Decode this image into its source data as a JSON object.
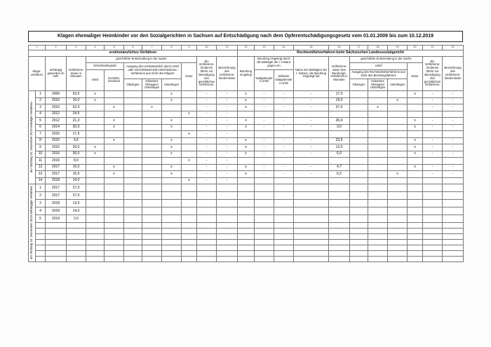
{
  "page": {
    "title": "Klagen ehemaliger Heimkinder vor den Sozialgerichten in Sachsen auf Entschädigung nach dem Opferentschädigungsgesetz vom 01.01.2009 bis zum 10.12.2019"
  },
  "table": {
    "column_numbers": [
      "1",
      "2",
      "3",
      "4",
      "5",
      "6",
      "7",
      "8",
      "9",
      "10",
      "11",
      "12",
      "13",
      "14",
      "15",
      "16",
      "17",
      "18",
      "19",
      "20",
      "21",
      "22"
    ],
    "bands": {
      "left": "erstinstanzliches Verfahren",
      "right": "Rechtsmittelverfahren beim Sächsischen Landessozialgericht"
    },
    "headers": {
      "klageverfahren": "Klage-verfahren",
      "jahr": "anhängig geworden im Jahr",
      "dauer1": "Verfahrens-dauer in Monaten",
      "gerichtl1": "gerichtliche Entscheidung in der Sache",
      "entscheidungsart": "Entscheidungsart",
      "urteil1": "Urteil",
      "gerichtsbescheid": "Gerichts-bescheid",
      "ausgang1": "Ausgang des erstinstanzlich durch Urteil oder Gerichtsbescheid entschiedenen Verfahrens aus Sicht des Klägers",
      "obsiegen1": "Obsiegen",
      "teilweise1": "teilweises Obsiegen/ Unterliegen",
      "unterliegen1": "Unterliegen",
      "keine1": "keine",
      "hindernis1": "Ein Verfahrens-hindernis führte zur Beendigung des gerichtlichen Verfahrens.",
      "bezeichnung1": "Bezeichnung des Verfahrens-hindernisses",
      "berufung": "Berufung eingelegt",
      "berufung_beklagte": "Berufung eingelegt durch die Beklagte der I. Instanz gegen ein",
      "stattgebend": "stattgebendes Urteil",
      "teilw_stattgebend": "teilweise stattgebendes Urteil",
      "name_beklagte": "Name der Beklagten der I. Instanz, die Berufung eingelegt hat",
      "dauer2": "Verfahrens-dauer des Berufungs-verfahrens in Monaten",
      "gerichtl2": "gerichtliche Entscheidung in der Sache",
      "urteil2": "Urteil",
      "ausgang2": "Ausgang des Rechtsmittelverfahrens aus Sicht des Berufungsführers",
      "obsiegen2": "Obsiegen",
      "teilweise2": "teilweises Obsiegen/ Unterliegen",
      "unterliegen2": "Unterliegen",
      "keine2": "keine",
      "hindernis2": "Ein Verfahrens-hindernis führte zur Beendigung des gerichtlichen Verfahrens.",
      "bezeichnung2": "Bezeichnung des Verfahrens-hindernisses"
    },
    "sections": [
      {
        "label": "am Stichtag 10. Dezember 2019 erledigte Verfahren",
        "filler_rows": 0,
        "rows": [
          [
            "1",
            "2009",
            "53,0",
            "x",
            "",
            "",
            "",
            "x",
            "",
            "-",
            "-",
            "x",
            "-",
            "-",
            "-",
            "17,0",
            "",
            "",
            "",
            "x",
            "-",
            "-"
          ],
          [
            "2",
            "2010",
            "16,0",
            "x",
            "",
            "",
            "",
            "x",
            "",
            "-",
            "-",
            "x",
            "-",
            "-",
            "-",
            "19,0",
            "",
            "",
            "x",
            "",
            "-",
            "-"
          ],
          [
            "3",
            "2010",
            "52,0",
            "",
            "x",
            "",
            "x",
            "",
            "",
            "-",
            "-",
            "x",
            "-",
            "-",
            "-",
            "37,0",
            "",
            "x",
            "",
            "",
            "-",
            "-"
          ],
          [
            "4",
            "2012",
            "24,5",
            "",
            "",
            "",
            "",
            "",
            "x",
            "-",
            "-",
            "",
            "",
            "",
            "",
            "",
            "",
            "",
            "",
            "",
            "",
            ""
          ],
          [
            "5",
            "2012",
            "21,3",
            "",
            "x",
            "",
            "",
            "x",
            "",
            "-",
            "-",
            "x",
            "-",
            "-",
            "-",
            "26,4",
            "",
            "",
            "",
            "x",
            "-",
            "-"
          ],
          [
            "6",
            "2014",
            "30,0",
            "",
            "x",
            "",
            "",
            "x",
            "",
            "-",
            "-",
            "x",
            "-",
            "-",
            "-",
            "3,0",
            "",
            "",
            "",
            "x",
            "-",
            "-"
          ],
          [
            "7",
            "2015",
            "17,5",
            "",
            "",
            "",
            "",
            "",
            "x",
            "-",
            "-",
            "",
            "",
            "",
            "",
            "",
            "",
            "",
            "",
            "",
            "",
            ""
          ],
          [
            "8",
            "2015",
            "4,5",
            "",
            "x",
            "",
            "",
            "x",
            "",
            "-",
            "-",
            "x",
            "-",
            "-",
            "-",
            "23,5",
            "",
            "",
            "",
            "x",
            "-",
            "-"
          ],
          [
            "9",
            "2015",
            "29,0",
            "x",
            "",
            "",
            "",
            "x",
            "",
            "-",
            "-",
            "x",
            "-",
            "-",
            "-",
            "12,5",
            "",
            "",
            "",
            "x",
            "-",
            "-"
          ],
          [
            "10",
            "2016",
            "36,0",
            "x",
            "",
            "",
            "",
            "x",
            "",
            "-",
            "-",
            "x",
            "-",
            "-",
            "-",
            "6,0",
            "",
            "",
            "",
            "x",
            "-",
            "-"
          ],
          [
            "11",
            "2016",
            "8,0",
            "",
            "",
            "",
            "",
            "",
            "x",
            "-",
            "-",
            "",
            "",
            "",
            "",
            "",
            "",
            "",
            "",
            "",
            "",
            ""
          ],
          [
            "12",
            "2017",
            "16,0",
            "",
            "x",
            "",
            "",
            "x",
            "",
            "-",
            "-",
            "x",
            "-",
            "-",
            "-",
            "4,7",
            "",
            "",
            "",
            "x",
            "-",
            "-"
          ],
          [
            "13",
            "2017",
            "16,0",
            "",
            "x",
            "",
            "",
            "x",
            "",
            "-",
            "-",
            "x",
            "-",
            "-",
            "-",
            "6,2",
            "",
            "",
            "x",
            "",
            "-",
            "-"
          ],
          [
            "14",
            "2018",
            "14,0",
            "",
            "",
            "",
            "",
            "",
            "x",
            "-",
            "-",
            "",
            "",
            "",
            "",
            "",
            "",
            "",
            "",
            "",
            "",
            ""
          ]
        ]
      },
      {
        "label": "am Stichtag 10. Dezember 2019 anhängige Verfahren",
        "filler_rows": 7,
        "rows": [
          [
            "1",
            "2017",
            "27,0",
            "",
            "",
            "",
            "",
            "",
            "",
            "",
            "",
            "",
            "",
            "",
            "",
            "",
            "",
            "",
            "",
            "",
            "",
            ""
          ],
          [
            "2",
            "2017",
            "27,0",
            "",
            "",
            "",
            "",
            "",
            "",
            "",
            "",
            "",
            "",
            "",
            "",
            "",
            "",
            "",
            "",
            "",
            "",
            ""
          ],
          [
            "3",
            "2018",
            "13,5",
            "",
            "",
            "",
            "",
            "",
            "",
            "",
            "",
            "",
            "",
            "",
            "",
            "",
            "",
            "",
            "",
            "",
            "",
            ""
          ],
          [
            "4",
            "2018",
            "14,0",
            "",
            "",
            "",
            "",
            "",
            "",
            "",
            "",
            "",
            "",
            "",
            "",
            "",
            "",
            "",
            "",
            "",
            "",
            ""
          ],
          [
            "5",
            "2019",
            "2,0",
            "",
            "",
            "",
            "",
            "",
            "",
            "",
            "",
            "",
            "",
            "",
            "",
            "",
            "",
            "",
            "",
            "",
            "",
            ""
          ]
        ]
      }
    ]
  }
}
